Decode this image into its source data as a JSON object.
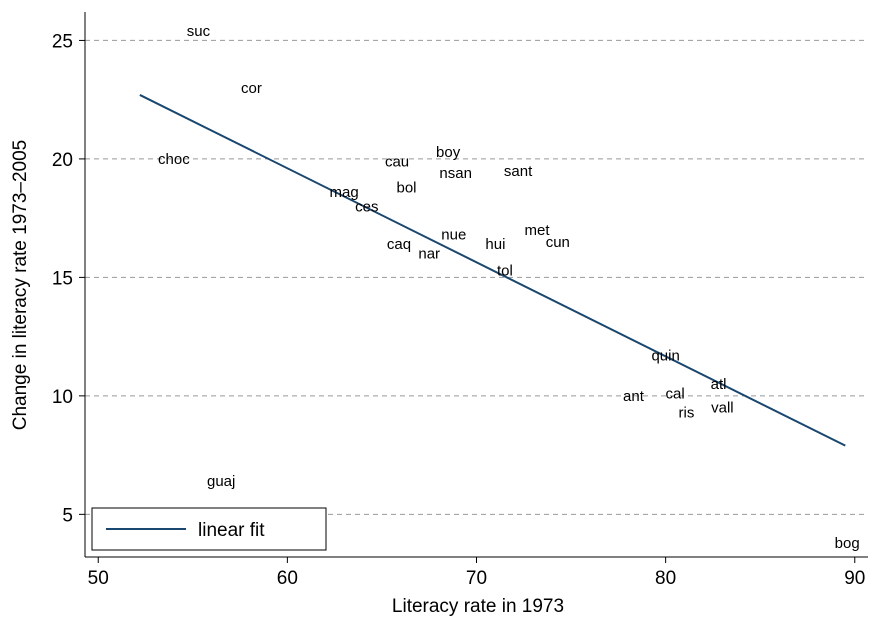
{
  "chart_data": {
    "type": "scatter",
    "xlabel": "Literacy rate in 1973",
    "ylabel": "Change in literacy rate 1973–2005",
    "xlim": [
      49.3,
      90.7
    ],
    "ylim": [
      3.2,
      26.2
    ],
    "x_ticks": [
      50,
      60,
      70,
      80,
      90
    ],
    "y_ticks": [
      5,
      10,
      15,
      20,
      25
    ],
    "grid": "horizontal dashed at y ticks",
    "points": [
      {
        "label": "suc",
        "x": 55.3,
        "y": 25.4
      },
      {
        "label": "cor",
        "x": 58.1,
        "y": 23.0
      },
      {
        "label": "choc",
        "x": 54.0,
        "y": 20.0
      },
      {
        "label": "cau",
        "x": 65.8,
        "y": 19.9
      },
      {
        "label": "boy",
        "x": 68.5,
        "y": 20.3
      },
      {
        "label": "nsan",
        "x": 68.9,
        "y": 19.4
      },
      {
        "label": "sant",
        "x": 72.2,
        "y": 19.5
      },
      {
        "label": "bol",
        "x": 66.3,
        "y": 18.8
      },
      {
        "label": "mag",
        "x": 63.0,
        "y": 18.6
      },
      {
        "label": "ces",
        "x": 64.2,
        "y": 18.0
      },
      {
        "label": "nue",
        "x": 68.8,
        "y": 16.8
      },
      {
        "label": "met",
        "x": 73.2,
        "y": 17.0
      },
      {
        "label": "hui",
        "x": 71.0,
        "y": 16.4
      },
      {
        "label": "cun",
        "x": 74.3,
        "y": 16.5
      },
      {
        "label": "caq",
        "x": 65.9,
        "y": 16.4
      },
      {
        "label": "nar",
        "x": 67.5,
        "y": 16.0
      },
      {
        "label": "tol",
        "x": 71.5,
        "y": 15.3
      },
      {
        "label": "quin",
        "x": 80.0,
        "y": 11.7
      },
      {
        "label": "atl",
        "x": 82.8,
        "y": 10.5
      },
      {
        "label": "cal",
        "x": 80.5,
        "y": 10.1
      },
      {
        "label": "ant",
        "x": 78.3,
        "y": 10.0
      },
      {
        "label": "vall",
        "x": 83.0,
        "y": 9.5
      },
      {
        "label": "ris",
        "x": 81.1,
        "y": 9.3
      },
      {
        "label": "guaj",
        "x": 56.5,
        "y": 6.4
      },
      {
        "label": "bog",
        "x": 89.6,
        "y": 3.8
      }
    ],
    "fit_line": {
      "name": "linear fit",
      "x": [
        52.2,
        89.5
      ],
      "y": [
        22.7,
        7.9
      ],
      "color": "#1a476f"
    },
    "legend": {
      "entries": [
        "linear fit"
      ],
      "placement": "bottom-left"
    }
  }
}
